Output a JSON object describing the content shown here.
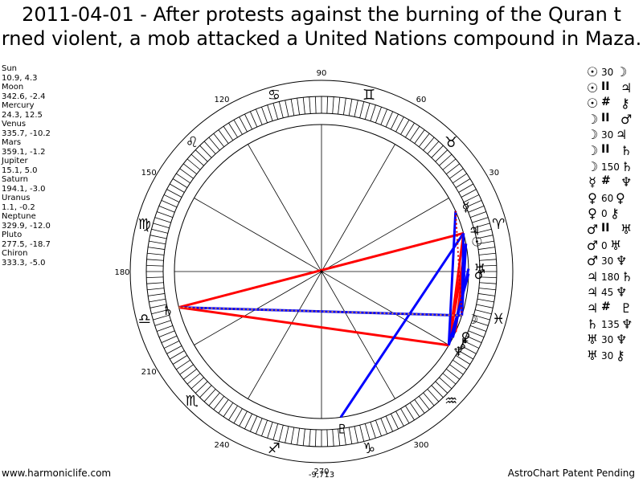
{
  "title": {
    "line1": "2011-04-01 - After protests against the burning of the Quran t",
    "line2": "rned violent, a mob attacked a United Nations compound in Maza."
  },
  "planets": [
    {
      "name": "Sun",
      "glyph": "☉",
      "coords": "10.9, 4.3",
      "lon": 10.9
    },
    {
      "name": "Moon",
      "glyph": "☽",
      "coords": "342.6, -2.4",
      "lon": 342.6
    },
    {
      "name": "Mercury",
      "glyph": "☿",
      "coords": "24.3, 12.5",
      "lon": 24.3
    },
    {
      "name": "Venus",
      "glyph": "♀",
      "coords": "335.7, -10.2",
      "lon": 335.7
    },
    {
      "name": "Mars",
      "glyph": "♂",
      "coords": "359.1, -1.2",
      "lon": 359.1
    },
    {
      "name": "Jupiter",
      "glyph": "♃",
      "coords": "15.1, 5.0",
      "lon": 15.1
    },
    {
      "name": "Saturn",
      "glyph": "♄",
      "coords": "194.1, -3.0",
      "lon": 194.1
    },
    {
      "name": "Uranus",
      "glyph": "♅",
      "coords": "1.1, -0.2",
      "lon": 1.1
    },
    {
      "name": "Neptune",
      "glyph": "♆",
      "coords": "329.9, -12.0",
      "lon": 329.9
    },
    {
      "name": "Pluto",
      "glyph": "♇",
      "coords": "277.5, -18.7",
      "lon": 277.5
    },
    {
      "name": "Chiron",
      "glyph": "⚷",
      "coords": "333.3, -5.0",
      "lon": 333.3
    }
  ],
  "aspects": [
    {
      "p1": "☉",
      "sym": "30",
      "p2": "☽"
    },
    {
      "p1": "☉",
      "sym": "II",
      "p2": "♃"
    },
    {
      "p1": "☉",
      "sym": "#",
      "p2": "⚷"
    },
    {
      "p1": "☽",
      "sym": "II",
      "p2": "♂"
    },
    {
      "p1": "☽",
      "sym": "30",
      "p2": "♃"
    },
    {
      "p1": "☽",
      "sym": "II",
      "p2": "♄"
    },
    {
      "p1": "☽",
      "sym": "150",
      "p2": "♄"
    },
    {
      "p1": "☿",
      "sym": "#",
      "p2": "♆"
    },
    {
      "p1": "♀",
      "sym": "60",
      "p2": "♀"
    },
    {
      "p1": "♀",
      "sym": "0",
      "p2": "⚷"
    },
    {
      "p1": "♂",
      "sym": "II",
      "p2": "♅"
    },
    {
      "p1": "♂",
      "sym": "0",
      "p2": "♅"
    },
    {
      "p1": "♂",
      "sym": "30",
      "p2": "♆"
    },
    {
      "p1": "♃",
      "sym": "180",
      "p2": "♄"
    },
    {
      "p1": "♃",
      "sym": "45",
      "p2": "♆"
    },
    {
      "p1": "♃",
      "sym": "#",
      "p2": "♇"
    },
    {
      "p1": "♄",
      "sym": "135",
      "p2": "♆"
    },
    {
      "p1": "♅",
      "sym": "30",
      "p2": "♆"
    },
    {
      "p1": "♅",
      "sym": "30",
      "p2": "⚷"
    }
  ],
  "wheel": {
    "degree_labels": [
      "30",
      "60",
      "90",
      "120",
      "150",
      "180",
      "210",
      "240",
      "270",
      "300"
    ],
    "signs": [
      "♈",
      "♉",
      "♊",
      "♋",
      "♌",
      "♍",
      "♎",
      "♏",
      "♐",
      "♑",
      "♒",
      "♓"
    ],
    "bottom_value": "-9,713"
  },
  "aspect_lines": [
    {
      "from": "Jupiter",
      "to": "Saturn",
      "color": "#ff0000"
    },
    {
      "from": "Moon",
      "to": "Saturn",
      "color": "#0000ff"
    },
    {
      "from": "Saturn",
      "to": "Neptune",
      "color": "#ff0000"
    },
    {
      "from": "Pluto",
      "to": "Jupiter",
      "color": "#0000ff"
    },
    {
      "from": "Sun",
      "to": "Neptune",
      "color": "#ff0000"
    },
    {
      "from": "Sun",
      "to": "Venus",
      "color": "#ff0000"
    },
    {
      "from": "Jupiter",
      "to": "Neptune",
      "color": "#ff0000"
    },
    {
      "from": "Mercury",
      "to": "Neptune",
      "color": "#0000ff"
    },
    {
      "from": "Sun",
      "to": "Moon",
      "color": "#0000ff"
    },
    {
      "from": "Mars",
      "to": "Neptune",
      "color": "#0000ff"
    },
    {
      "from": "Jupiter",
      "to": "Moon",
      "color": "#0000ff"
    },
    {
      "from": "Uranus",
      "to": "Chiron",
      "color": "#0000ff"
    }
  ],
  "dotted_lines": [
    {
      "from": "Mercury",
      "to": "Moon",
      "color": "#cc0000"
    },
    {
      "from": "Saturn",
      "to": "Moon",
      "color": "#cc8844"
    }
  ],
  "footer": {
    "left": "www.harmoniclife.com",
    "right": "AstroChart Patent Pending"
  }
}
